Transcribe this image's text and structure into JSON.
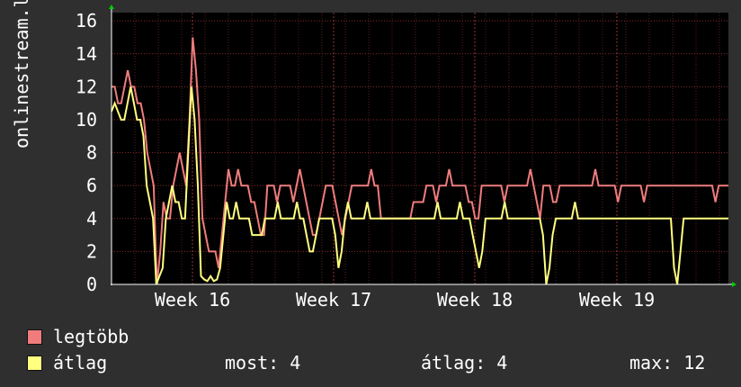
{
  "chart_data": {
    "type": "line",
    "ylabel": "onlinestream.live",
    "yticks": [
      0,
      2,
      4,
      6,
      8,
      10,
      12,
      14,
      16
    ],
    "ylim": [
      0,
      16.5
    ],
    "xticks": [
      "Week 16",
      "Week 17",
      "Week 18",
      "Week 19"
    ],
    "grid": true,
    "series": [
      {
        "name": "legtöbb",
        "color": "#f07c7c",
        "values": [
          12,
          12,
          11,
          11,
          12,
          13,
          12,
          12,
          11,
          11,
          10,
          8,
          7,
          6,
          0,
          2,
          5,
          4,
          4,
          6,
          7,
          8,
          7,
          6,
          10,
          15,
          13,
          10,
          4,
          3,
          2,
          2,
          2,
          1,
          3,
          5,
          7,
          6,
          6,
          7,
          6,
          6,
          6,
          5,
          5,
          4,
          3,
          3,
          6,
          6,
          6,
          5,
          6,
          6,
          6,
          6,
          5,
          6,
          7,
          6,
          5,
          4,
          3,
          3,
          4,
          5,
          6,
          6,
          6,
          5,
          4,
          3,
          4,
          5,
          6,
          6,
          6,
          6,
          6,
          6,
          7,
          6,
          6,
          4,
          4,
          4,
          4,
          4,
          4,
          4,
          4,
          4,
          4,
          5,
          5,
          5,
          5,
          6,
          6,
          6,
          5,
          6,
          6,
          6,
          7,
          6,
          6,
          6,
          6,
          6,
          5,
          5,
          4,
          4,
          6,
          6,
          6,
          6,
          6,
          6,
          6,
          5,
          6,
          6,
          6,
          6,
          6,
          6,
          6,
          7,
          6,
          5,
          4,
          6,
          6,
          6,
          5,
          5,
          6,
          6,
          6,
          6,
          6,
          6,
          6,
          6,
          6,
          6,
          6,
          7,
          6,
          6,
          6,
          6,
          6,
          6,
          5,
          6,
          6,
          6,
          6,
          6,
          6,
          6,
          5,
          6,
          6,
          6,
          6,
          6,
          6,
          6,
          6,
          6,
          6,
          6,
          6,
          6,
          6,
          6,
          6,
          6,
          6,
          6,
          6,
          6,
          5,
          6,
          6,
          6,
          6
        ]
      },
      {
        "name": "átlag",
        "color": "#ffff80",
        "values": [
          10.5,
          11,
          10.5,
          10,
          10,
          11,
          12,
          11,
          10,
          10,
          9,
          6,
          5,
          4,
          0,
          0.5,
          1,
          4,
          5,
          6,
          5,
          5,
          4,
          4,
          8,
          12,
          10,
          6,
          0.5,
          0.3,
          0.2,
          0.5,
          0.2,
          0.3,
          1,
          3,
          5,
          4,
          4,
          5,
          4,
          4,
          4,
          4,
          3,
          3,
          3,
          3,
          4,
          4,
          4,
          4,
          5,
          4,
          4,
          4,
          4,
          4,
          5,
          4,
          4,
          3,
          2,
          2,
          3,
          4,
          4,
          4,
          4,
          4,
          3,
          1,
          2,
          4,
          5,
          4,
          4,
          4,
          4,
          4,
          5,
          4,
          4,
          4,
          4,
          4,
          4,
          4,
          4,
          4,
          4,
          4,
          4,
          4,
          4,
          4,
          4,
          4,
          4,
          4,
          4,
          4,
          5,
          4,
          4,
          4,
          4,
          4,
          4,
          5,
          4,
          4,
          4,
          3,
          2,
          1,
          2,
          4,
          4,
          4,
          4,
          4,
          4,
          5,
          4,
          4,
          4,
          4,
          4,
          4,
          4,
          4,
          4,
          4,
          4,
          3,
          0,
          1,
          3,
          4,
          4,
          4,
          4,
          4,
          4,
          5,
          4,
          4,
          4,
          4,
          4,
          4,
          4,
          4,
          4,
          4,
          4,
          4,
          4,
          4,
          4,
          4,
          4,
          4,
          4,
          4,
          4,
          4,
          4,
          4,
          4,
          4,
          4,
          4,
          4,
          4,
          1,
          0,
          2,
          4,
          4,
          4,
          4,
          4,
          4,
          4,
          4,
          4,
          4,
          4,
          4,
          4,
          4,
          4
        ]
      }
    ],
    "legend_placement": "bottom-left"
  },
  "legend": {
    "items": [
      {
        "label": "legtöbb",
        "color": "#f07c7c"
      },
      {
        "label": "átlag",
        "color": "#ffff80"
      }
    ],
    "stats": {
      "most": "most: 4",
      "atlag": "átlag: 4",
      "max": "max: 12"
    }
  }
}
